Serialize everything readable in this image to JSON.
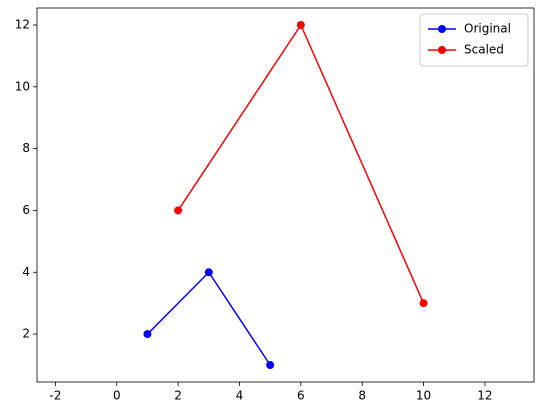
{
  "chart_data": {
    "type": "line",
    "series": [
      {
        "name": "Original",
        "color": "#0000ff",
        "x": [
          1,
          3,
          5
        ],
        "values": [
          2,
          4,
          1
        ]
      },
      {
        "name": "Scaled",
        "color": "#ff0000",
        "x": [
          2,
          6,
          10
        ],
        "values": [
          6,
          12,
          3
        ]
      }
    ],
    "xlim": [
      -2.6,
      13.6
    ],
    "xticks": [
      -2,
      0,
      2,
      4,
      6,
      8,
      10,
      12
    ],
    "ylim": [
      0.45,
      12.55
    ],
    "yticks": [
      2,
      4,
      6,
      8,
      10,
      12
    ],
    "legend": "upper right",
    "grid": false
  }
}
